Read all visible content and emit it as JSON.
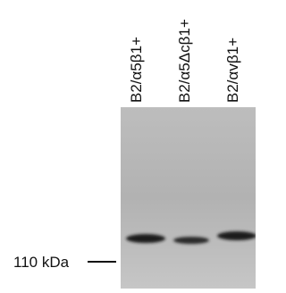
{
  "lanes": [
    {
      "label": "B2/α5β1+"
    },
    {
      "label": "B2/α5Δcβ1+"
    },
    {
      "label": "B2/αvβ1+"
    }
  ],
  "marker": {
    "label": "110 kDa"
  }
}
